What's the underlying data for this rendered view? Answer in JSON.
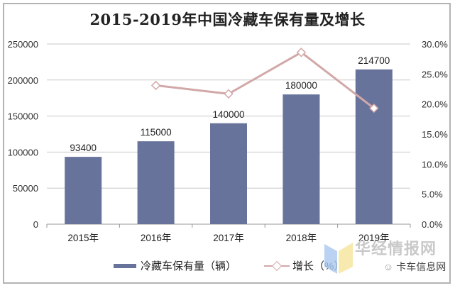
{
  "chart_data": {
    "type": "bar+line",
    "title": "2015-2019年中国冷藏车保有量及增长",
    "categories": [
      "2015年",
      "2016年",
      "2017年",
      "2018年",
      "2019年"
    ],
    "series": [
      {
        "name": "冷藏车保有量（辆）",
        "type": "bar",
        "axis": "left",
        "color": "#67739a",
        "values": [
          93400,
          115000,
          140000,
          180000,
          214700
        ],
        "labels": [
          "93400",
          "115000",
          "140000",
          "180000",
          "214700"
        ]
      },
      {
        "name": "增长（%）",
        "type": "line",
        "axis": "right",
        "color": "#d2a8a8",
        "values": [
          null,
          23.1,
          21.7,
          28.6,
          19.3
        ]
      }
    ],
    "y_left": {
      "min": 0,
      "max": 250000,
      "ticks": [
        "0",
        "50000",
        "100000",
        "150000",
        "200000",
        "250000"
      ]
    },
    "y_right": {
      "min": 0,
      "max": 30,
      "ticks": [
        "0.0%",
        "5.0%",
        "10.0%",
        "15.0%",
        "20.0%",
        "25.0%",
        "30.0%"
      ]
    },
    "grid": true,
    "legend_position": "bottom"
  },
  "legend": {
    "bar_label": "冷藏车保有量（辆）",
    "line_label": "增长（%）"
  },
  "watermark": {
    "site": "华经情报网",
    "account": "卡车信息网"
  }
}
